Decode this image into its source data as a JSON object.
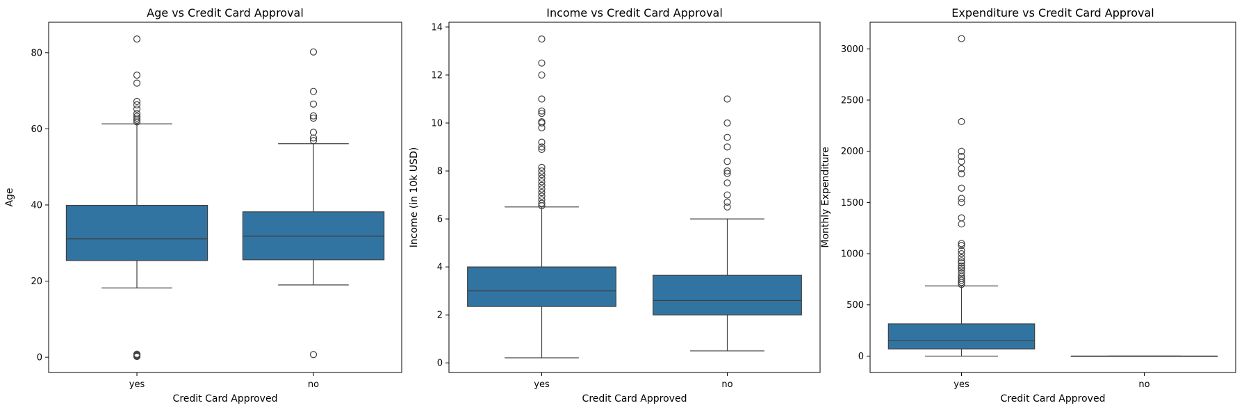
{
  "chart_data": [
    {
      "type": "box",
      "title": "Age vs Credit Card Approval",
      "xlabel": "Credit Card Approved",
      "ylabel": "Age",
      "categories": [
        "yes",
        "no"
      ],
      "ylim": [
        -4,
        88
      ],
      "yticks": [
        0,
        20,
        40,
        60,
        80
      ],
      "color": "#3274a1",
      "boxes": [
        {
          "category": "yes",
          "whisker_low": 18.2,
          "q1": 25.4,
          "median": 31.1,
          "q3": 39.9,
          "whisker_high": 61.3,
          "outliers": [
            0.2,
            0.4,
            0.6,
            0.8,
            61.8,
            62.3,
            62.8,
            63.3,
            64.0,
            65.2,
            66.3,
            67.2,
            72.0,
            74.1,
            83.6
          ]
        },
        {
          "category": "no",
          "whisker_low": 19.0,
          "q1": 25.6,
          "median": 31.8,
          "q3": 38.2,
          "whisker_high": 56.1,
          "outliers": [
            0.7,
            56.9,
            57.6,
            59.1,
            62.8,
            63.4,
            66.5,
            69.8,
            80.2
          ]
        }
      ]
    },
    {
      "type": "box",
      "title": "Income vs Credit Card Approval",
      "xlabel": "Credit Card Approved",
      "ylabel": "Income (in 10k USD)",
      "categories": [
        "yes",
        "no"
      ],
      "ylim": [
        -0.4,
        14.2
      ],
      "yticks": [
        0,
        2,
        4,
        6,
        8,
        10,
        12,
        14
      ],
      "color": "#3274a1",
      "boxes": [
        {
          "category": "yes",
          "whisker_low": 0.21,
          "q1": 2.35,
          "median": 3.0,
          "q3": 4.0,
          "whisker_high": 6.5,
          "outliers": [
            6.55,
            6.65,
            6.8,
            6.95,
            7.1,
            7.25,
            7.4,
            7.55,
            7.7,
            7.85,
            8.0,
            8.15,
            8.9,
            9.0,
            9.2,
            9.8,
            10.0,
            10.05,
            10.4,
            10.5,
            11.0,
            12.0,
            12.5,
            13.5
          ]
        },
        {
          "category": "no",
          "whisker_low": 0.5,
          "q1": 2.0,
          "median": 2.6,
          "q3": 3.65,
          "whisker_high": 6.0,
          "outliers": [
            6.5,
            6.7,
            7.0,
            7.5,
            7.9,
            8.0,
            8.4,
            9.0,
            9.4,
            10.0,
            11.0
          ]
        }
      ]
    },
    {
      "type": "box",
      "title": "Expenditure vs Credit Card Approval",
      "xlabel": "Credit Card Approved",
      "ylabel": "Monthly Expenditure",
      "categories": [
        "yes",
        "no"
      ],
      "ylim": [
        -160,
        3260
      ],
      "yticks": [
        0,
        500,
        1000,
        1500,
        2000,
        2500,
        3000
      ],
      "color": "#3274a1",
      "boxes": [
        {
          "category": "yes",
          "whisker_low": 0,
          "q1": 70,
          "median": 150,
          "q3": 315,
          "whisker_high": 685,
          "outliers": [
            700,
            720,
            740,
            760,
            780,
            810,
            840,
            860,
            880,
            910,
            930,
            960,
            1000,
            1030,
            1080,
            1100,
            1290,
            1350,
            1500,
            1540,
            1640,
            1780,
            1830,
            1900,
            1950,
            2000,
            2290,
            3100
          ]
        },
        {
          "category": "no",
          "whisker_low": 0,
          "q1": 0,
          "median": 0,
          "q3": 0,
          "whisker_high": 0,
          "outliers": []
        }
      ]
    }
  ]
}
